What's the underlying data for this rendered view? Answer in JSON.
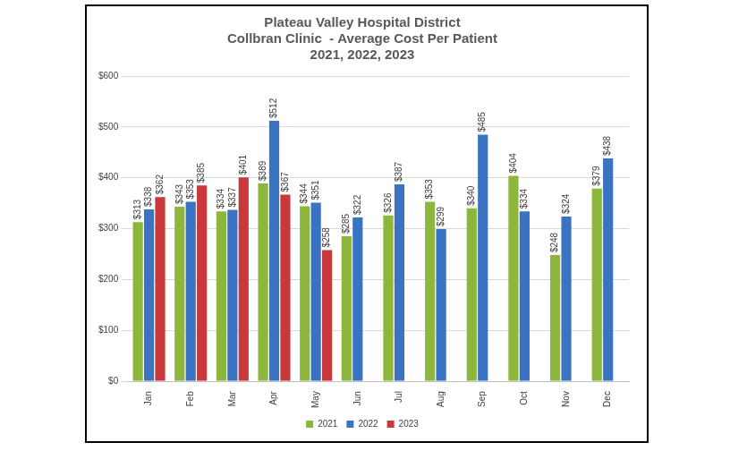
{
  "chart_data": {
    "type": "bar",
    "title": [
      "Plateau Valley Hospital District",
      "Collbran Clinic  - Average Cost Per Patient",
      "2021, 2022, 2023"
    ],
    "categories": [
      "Jan",
      "Feb",
      "Mar",
      "Apr",
      "May",
      "Jun",
      "Jul",
      "Aug",
      "Sep",
      "Oct",
      "Nov",
      "Dec"
    ],
    "series": [
      {
        "name": "2021",
        "color": "#8cb63c",
        "values": [
          313,
          343,
          334,
          389,
          344,
          285,
          326,
          353,
          340,
          404,
          248,
          379
        ],
        "value_labels": [
          "$313",
          "$343",
          "$334",
          "$389",
          "$344",
          "$285",
          "$326",
          "$353",
          "$340",
          "$404",
          "$248",
          "$379"
        ]
      },
      {
        "name": "2022",
        "color": "#3a73c2",
        "values": [
          338,
          353,
          337,
          512,
          351,
          322,
          387,
          299,
          485,
          334,
          324,
          438
        ],
        "value_labels": [
          "$338",
          "$353",
          "$337",
          "$512",
          "$351",
          "$322",
          "$387",
          "$299",
          "$485",
          "$334",
          "$324",
          "$438"
        ]
      },
      {
        "name": "2023",
        "color": "#c9383a",
        "values": [
          362,
          385,
          401,
          367,
          258,
          null,
          null,
          null,
          null,
          null,
          null,
          null
        ],
        "value_labels": [
          "$362",
          "$385",
          "$401",
          "$367",
          "$258",
          null,
          null,
          null,
          null,
          null,
          null,
          null
        ]
      }
    ],
    "ylim": [
      0,
      600
    ],
    "yticks": [
      {
        "value": 0,
        "label": "$0"
      },
      {
        "value": 100,
        "label": "$100"
      },
      {
        "value": 200,
        "label": "$200"
      },
      {
        "value": 300,
        "label": "$300"
      },
      {
        "value": 400,
        "label": "$400"
      },
      {
        "value": 500,
        "label": "$500"
      },
      {
        "value": 600,
        "label": "$600"
      }
    ],
    "grid": true,
    "legend": "bottom",
    "data_labels": true
  }
}
